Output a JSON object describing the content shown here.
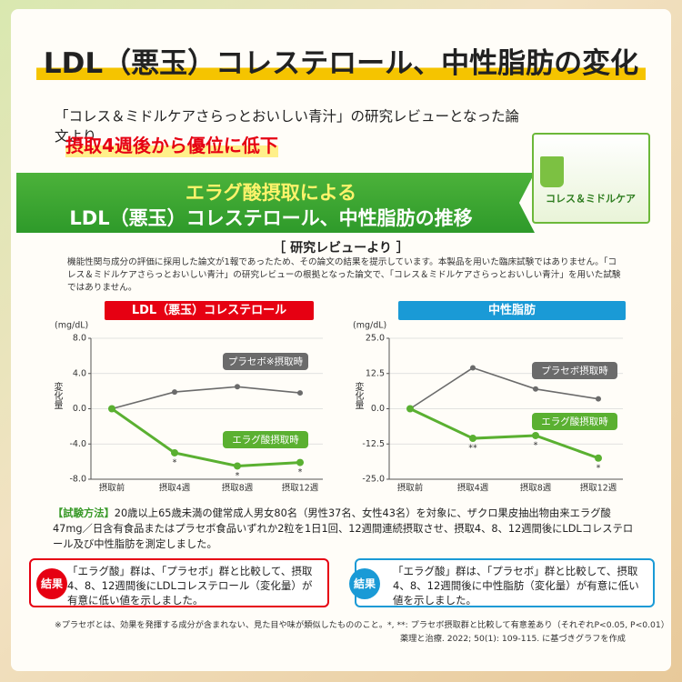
{
  "header": {
    "title": "LDL（悪玉）コレステロール、中性脂肪の変化",
    "subtitle": "「コレス＆ミドルケアさらっとおいしい青汁」の研究レビューとなった論文より",
    "highlight": "摂取4週後から優位に低下"
  },
  "product": {
    "name": "コレス＆ミドルケア"
  },
  "banner": {
    "line1": "エラグ酸摂取による",
    "line2": "LDL（悪玉）コレステロール、中性脂肪の推移"
  },
  "review": {
    "heading": "［ 研究レビューより ］",
    "note": "機能性関与成分の評価に採用した論文が1報であったため、その論文の結果を提示しています。本製品を用いた臨床試験ではありません。「コレス＆ミドルケアさらっとおいしい青汁」の研究レビューの根拠となった論文で、「コレス＆ミドルケアさらっとおいしい青汁」を用いた試験ではありません。"
  },
  "chart_data": [
    {
      "type": "line",
      "title": "LDL（悪玉）コレステロール",
      "title_color": "#e60012",
      "unit": "(mg/dL)",
      "ylabel": "変化量",
      "categories": [
        "摂取前",
        "摂取4週",
        "摂取8週",
        "摂取12週"
      ],
      "ylim": [
        -8,
        8
      ],
      "yticks": [
        {
          "value": 8,
          "label": "8.0"
        },
        {
          "value": 4,
          "label": "4.0"
        },
        {
          "value": 0,
          "label": "0.0"
        },
        {
          "value": -4,
          "label": "-4.0"
        },
        {
          "value": -8,
          "label": "-8.0"
        }
      ],
      "grid": true,
      "series": [
        {
          "name": "プラセボ※摂取時",
          "color": "#6b6b6b",
          "values": [
            0,
            1.9,
            2.5,
            1.8
          ]
        },
        {
          "name": "エラグ酸摂取時",
          "color": "#5ab031",
          "values": [
            0,
            -5.0,
            -6.5,
            -6.1
          ],
          "markers": [
            null,
            "*",
            "*",
            "*"
          ]
        }
      ]
    },
    {
      "type": "line",
      "title": "中性脂肪",
      "title_color": "#1a9ad6",
      "unit": "(mg/dL)",
      "ylabel": "変化量",
      "categories": [
        "摂取前",
        "摂取4週",
        "摂取8週",
        "摂取12週"
      ],
      "ylim": [
        -25,
        25
      ],
      "yticks": [
        {
          "value": 25,
          "label": "25.0"
        },
        12.5,
        {
          "value": 0,
          "label": "0.0"
        },
        -12.5,
        {
          "value": -25,
          "label": "-25.0"
        }
      ],
      "grid": true,
      "series": [
        {
          "name": "プラセボ摂取時",
          "color": "#6b6b6b",
          "values": [
            0,
            14.5,
            7,
            3.5
          ]
        },
        {
          "name": "エラグ酸摂取時",
          "color": "#5ab031",
          "values": [
            0,
            -10.5,
            -9.5,
            -17.5
          ],
          "markers": [
            null,
            "**",
            "*",
            "*"
          ]
        }
      ]
    }
  ],
  "method": {
    "label": "【試験方法】",
    "text": "20歳以上65歳未満の健常成人男女80名（男性37名、女性43名）を対象に、ザクロ果皮抽出物由来エラグ酸47mg／日含有食品またはプラセボ食品いずれか2粒を1日1回、12週間連続摂取させ、摂取4、8、12週間後にLDLコレステロール及び中性脂肪を測定しました。"
  },
  "results": [
    {
      "label": "結果",
      "color": "#e60012",
      "text": "「エラグ酸」群は、「プラセボ」群と比較して、摂取4、8、12週間後にLDLコレステロール（変化量）が有意に低い値を示しました。"
    },
    {
      "label": "結果",
      "color": "#1a9ad6",
      "text": "「エラグ酸」群は、「プラセボ」群と比較して、摂取4、8、12週間後に中性脂肪（変化量）が有意に低い値を示しました。"
    }
  ],
  "footnote": {
    "line1": "※プラセボとは、効果を発揮する成分が含まれない、見た目や味が類似したもののこと。*, **: プラセボ摂取群と比較して有意差あり（それぞれP<0.05, P<0.01）",
    "line2": "薬理と治療. 2022; 50(1): 109-115. に基づきグラフを作成"
  }
}
